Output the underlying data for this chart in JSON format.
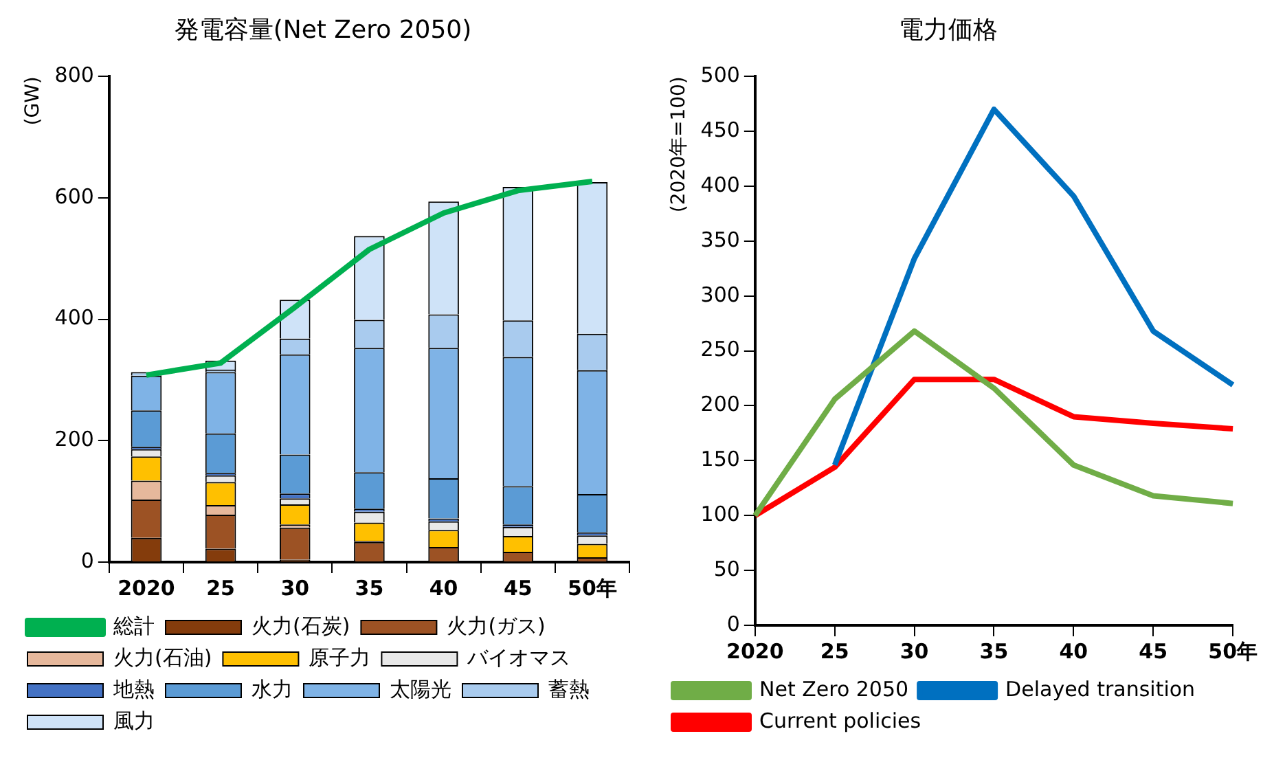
{
  "chart_data": [
    {
      "type": "bar",
      "title": "発電容量(Net Zero 2050)",
      "ylabel": "(GW)",
      "stacked": true,
      "legend": "bottom",
      "grid": false,
      "categories": [
        "2020",
        "25",
        "30",
        "35",
        "40",
        "45",
        "50年"
      ],
      "ylim": [
        0,
        800
      ],
      "yticks": [
        0,
        200,
        400,
        600,
        800
      ],
      "series": [
        {
          "name": "火力(石炭)",
          "color": "#843c0c",
          "values": [
            40,
            22,
            4,
            1,
            1,
            1,
            1
          ]
        },
        {
          "name": "火力(ガス)",
          "color": "#9c5224",
          "values": [
            63,
            56,
            53,
            32,
            24,
            16,
            7
          ]
        },
        {
          "name": "火力(石油)",
          "color": "#e6b89c",
          "values": [
            31,
            16,
            5,
            2,
            null,
            null,
            null
          ]
        },
        {
          "name": "原子力",
          "color": "#ffc000",
          "values": [
            40,
            38,
            33,
            30,
            28,
            26,
            22
          ]
        },
        {
          "name": "バイオマス",
          "color": "#e8e8e8",
          "values": [
            12,
            11,
            10,
            18,
            14,
            15,
            14
          ]
        },
        {
          "name": "地熱",
          "color": "#4472c4",
          "values": [
            4,
            4,
            8,
            5,
            5,
            4,
            5
          ]
        },
        {
          "name": "水力",
          "color": "#5b9bd5",
          "values": [
            60,
            65,
            64,
            60,
            66,
            63,
            63
          ]
        },
        {
          "name": "太陽光",
          "color": "#7fb3e6",
          "values": [
            57,
            101,
            165,
            205,
            215,
            213,
            204
          ]
        },
        {
          "name": "蓄熱",
          "color": "#a9cbee",
          "values": [
            6,
            4,
            26,
            46,
            55,
            60,
            60
          ]
        },
        {
          "name": "風力",
          "color": "#cfe3f8",
          "values": [
            null,
            15,
            64,
            138,
            186,
            220,
            250
          ]
        },
        {
          "name": "総計",
          "type": "line",
          "color": "#00b050",
          "values": [
            308,
            328,
            420,
            515,
            575,
            612,
            627
          ]
        }
      ]
    },
    {
      "type": "line",
      "title": "電力価格",
      "ylabel": "(2020年=100)",
      "legend": "bottom",
      "grid": false,
      "marker": "none",
      "categories": [
        "2020",
        "25",
        "30",
        "35",
        "40",
        "45",
        "50年"
      ],
      "ylim": [
        0,
        500
      ],
      "yticks": [
        0,
        50,
        100,
        150,
        200,
        250,
        300,
        350,
        400,
        450,
        500
      ],
      "series": [
        {
          "name": "Net Zero 2050",
          "color": "#70ad47",
          "values": [
            100,
            206,
            268,
            216,
            146,
            118,
            111
          ]
        },
        {
          "name": "Delayed transition",
          "color": "#0070c0",
          "values": [
            null,
            146,
            334,
            470,
            391,
            268,
            219
          ]
        },
        {
          "name": "Current policies",
          "color": "#ff0000",
          "values": [
            100,
            144,
            224,
            224,
            190,
            184,
            179
          ]
        }
      ]
    }
  ]
}
